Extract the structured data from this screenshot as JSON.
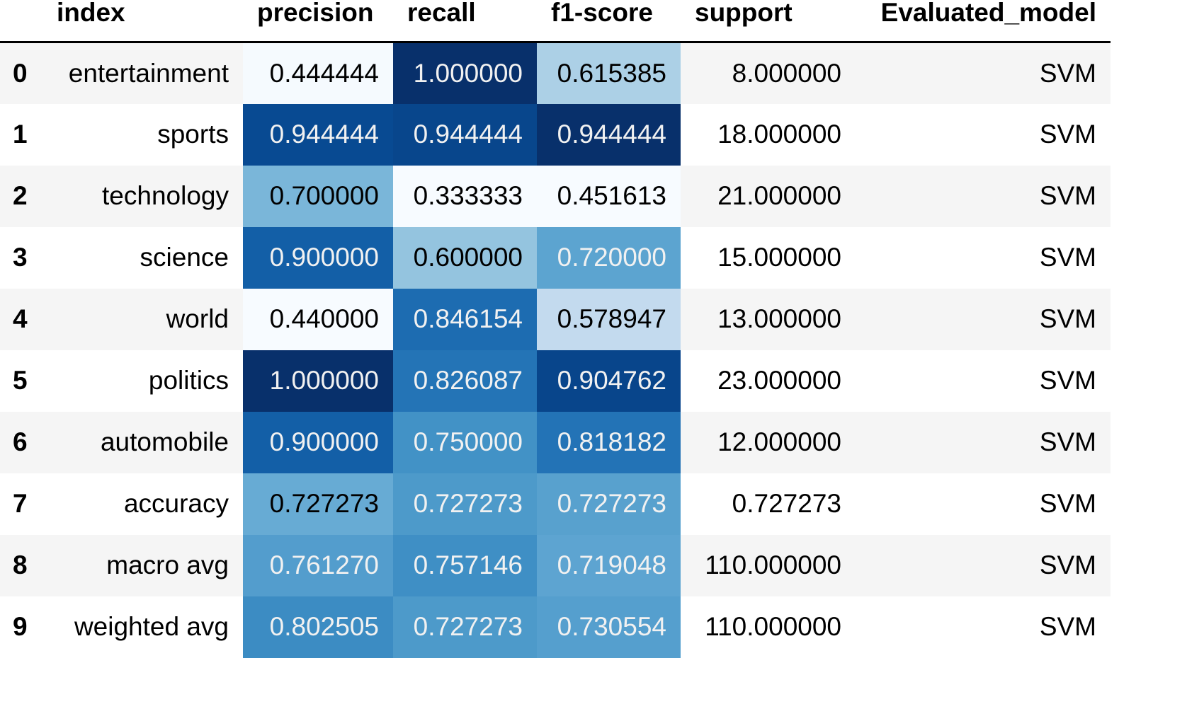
{
  "table": {
    "columns": [
      "index",
      "precision",
      "recall",
      "f1-score",
      "support",
      "Evaluated_model"
    ],
    "color_scale": {
      "min_color": "#f7fbff",
      "max_color": "#08306b",
      "light_text": "#f1f1f1",
      "dark_text": "#000000"
    },
    "rows": [
      {
        "row_index": "0",
        "index": "entertainment",
        "precision": "0.444444",
        "recall": "1.000000",
        "f1": "0.615385",
        "support": "8.000000",
        "model": "SVM",
        "precision_value": 0.444444,
        "recall_value": 1.0,
        "f1_value": 0.615385
      },
      {
        "row_index": "1",
        "index": "sports",
        "precision": "0.944444",
        "recall": "0.944444",
        "f1": "0.944444",
        "support": "18.000000",
        "model": "SVM",
        "precision_value": 0.944444,
        "recall_value": 0.944444,
        "f1_value": 0.944444
      },
      {
        "row_index": "2",
        "index": "technology",
        "precision": "0.700000",
        "recall": "0.333333",
        "f1": "0.451613",
        "support": "21.000000",
        "model": "SVM",
        "precision_value": 0.7,
        "recall_value": 0.333333,
        "f1_value": 0.451613
      },
      {
        "row_index": "3",
        "index": "science",
        "precision": "0.900000",
        "recall": "0.600000",
        "f1": "0.720000",
        "support": "15.000000",
        "model": "SVM",
        "precision_value": 0.9,
        "recall_value": 0.6,
        "f1_value": 0.72
      },
      {
        "row_index": "4",
        "index": "world",
        "precision": "0.440000",
        "recall": "0.846154",
        "f1": "0.578947",
        "support": "13.000000",
        "model": "SVM",
        "precision_value": 0.44,
        "recall_value": 0.846154,
        "f1_value": 0.578947
      },
      {
        "row_index": "5",
        "index": "politics",
        "precision": "1.000000",
        "recall": "0.826087",
        "f1": "0.904762",
        "support": "23.000000",
        "model": "SVM",
        "precision_value": 1.0,
        "recall_value": 0.826087,
        "f1_value": 0.904762
      },
      {
        "row_index": "6",
        "index": "automobile",
        "precision": "0.900000",
        "recall": "0.750000",
        "f1": "0.818182",
        "support": "12.000000",
        "model": "SVM",
        "precision_value": 0.9,
        "recall_value": 0.75,
        "f1_value": 0.818182
      },
      {
        "row_index": "7",
        "index": "accuracy",
        "precision": "0.727273",
        "recall": "0.727273",
        "f1": "0.727273",
        "support": "0.727273",
        "model": "SVM",
        "precision_value": 0.727273,
        "recall_value": 0.727273,
        "f1_value": 0.727273
      },
      {
        "row_index": "8",
        "index": "macro avg",
        "precision": "0.761270",
        "recall": "0.757146",
        "f1": "0.719048",
        "support": "110.000000",
        "model": "SVM",
        "precision_value": 0.76127,
        "recall_value": 0.757146,
        "f1_value": 0.719048
      },
      {
        "row_index": "9",
        "index": "weighted avg",
        "precision": "0.802505",
        "recall": "0.727273",
        "f1": "0.730554",
        "support": "110.000000",
        "model": "SVM",
        "precision_value": 0.802505,
        "recall_value": 0.727273,
        "f1_value": 0.730554
      }
    ]
  }
}
